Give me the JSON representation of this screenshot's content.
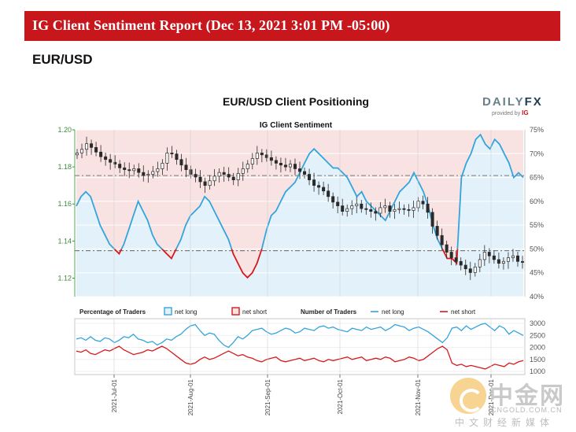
{
  "banner": {
    "title": "IG Client Sentiment Report (Dec 13, 2021 3:01 PM -05:00)"
  },
  "pair": "EUR/USD",
  "logo": {
    "main": "DAILY",
    "fx": "FX",
    "sub": "provided by",
    "ig": "IG"
  },
  "watermark": {
    "cn": "中金网",
    "en": "CNGOLD.COM.CN",
    "sub": "中文财经新媒体"
  },
  "colors": {
    "banner": "#c8161d",
    "net_long": "#33a4dc",
    "net_short": "#d7191c",
    "long_fill": "#e3f2fa",
    "short_fill": "#f9e2e2",
    "candle": "#2a2a2a"
  },
  "chart_data": [
    {
      "type": "candlestick-sentiment",
      "title": "EUR/USD Client Positioning",
      "subtitle": "IG Client Sentiment",
      "price_axis": {
        "min": 1.11,
        "max": 1.2,
        "ticks": [
          1.12,
          1.14,
          1.16,
          1.18,
          1.2
        ],
        "tick_labels": [
          "1.12",
          "1.14",
          "1.16",
          "1.18",
          "1.20"
        ]
      },
      "pct_axis": {
        "min": 40,
        "max": 75,
        "ticks": [
          40,
          45,
          50,
          55,
          60,
          65,
          70,
          75
        ],
        "tick_labels": [
          "40%",
          "45%",
          "50%",
          "55%",
          "60%",
          "65%",
          "70%",
          "75%"
        ]
      },
      "reference_levels": {
        "price": 1.1348,
        "pct_mid": 50,
        "pct_current": 65.4
      },
      "price_series": [
        1.1875,
        1.1895,
        1.1925,
        1.1905,
        1.188,
        1.1855,
        1.184,
        1.1825,
        1.1815,
        1.1795,
        1.1785,
        1.178,
        1.179,
        1.177,
        1.1755,
        1.176,
        1.1775,
        1.179,
        1.182,
        1.1875,
        1.187,
        1.184,
        1.181,
        1.1785,
        1.176,
        1.1745,
        1.172,
        1.17,
        1.1725,
        1.175,
        1.177,
        1.176,
        1.1745,
        1.173,
        1.1765,
        1.179,
        1.1815,
        1.1845,
        1.1875,
        1.1865,
        1.185,
        1.1835,
        1.182,
        1.181,
        1.18,
        1.1815,
        1.179,
        1.1775,
        1.176,
        1.173,
        1.17,
        1.169,
        1.167,
        1.164,
        1.161,
        1.159,
        1.156,
        1.1575,
        1.159,
        1.16,
        1.1575,
        1.157,
        1.156,
        1.155,
        1.158,
        1.159,
        1.156,
        1.157,
        1.1575,
        1.157,
        1.1565,
        1.158,
        1.1615,
        1.16,
        1.1555,
        1.148,
        1.143,
        1.138,
        1.134,
        1.131,
        1.129,
        1.127,
        1.125,
        1.123,
        1.126,
        1.13,
        1.134,
        1.132,
        1.13,
        1.128,
        1.129,
        1.131,
        1.132,
        1.129,
        1.1285
      ],
      "pct_long_series": [
        59,
        61,
        62,
        61,
        58,
        55,
        53,
        51,
        50,
        49,
        51,
        54,
        57,
        60,
        58,
        56,
        53,
        51,
        50,
        49,
        48,
        50,
        52,
        55,
        57,
        58,
        59,
        61,
        60,
        58,
        56,
        54,
        52,
        49,
        47,
        45,
        44,
        45,
        47,
        50,
        54,
        57,
        58,
        60,
        62,
        63,
        64,
        66,
        68,
        70,
        71,
        70,
        69,
        68,
        67,
        67,
        66,
        65,
        63,
        61,
        62,
        60,
        59,
        58,
        57,
        56,
        58,
        60,
        62,
        63,
        64,
        66,
        64,
        62,
        59,
        55,
        52,
        50,
        48,
        48,
        47,
        65,
        68,
        70,
        73,
        74,
        72,
        71,
        73,
        72,
        70,
        68,
        65,
        66,
        65
      ],
      "x_axis": {
        "tick_labels": [
          "2021-Jul-01",
          "2021-Aug-01",
          "2021-Sep-01",
          "2021-Oct-01",
          "2021-Nov-01",
          "2021-Dec-01"
        ]
      }
    },
    {
      "type": "line",
      "title": "",
      "y_axis": {
        "min": 1000,
        "max": 3000,
        "ticks": [
          1000,
          1500,
          2000,
          2500,
          3000
        ],
        "tick_labels": [
          "1000",
          "1500",
          "2000",
          "2500",
          "3000"
        ]
      },
      "legend": {
        "pct_label": "Percentage of Traders",
        "pct_long": "net long",
        "pct_short": "net short",
        "num_label": "Number of Traders",
        "num_long": "net long",
        "num_short": "net short"
      },
      "series": [
        {
          "name": "net long",
          "values": [
            2350,
            2400,
            2300,
            2450,
            2300,
            2250,
            2400,
            2350,
            2200,
            2300,
            2450,
            2400,
            2550,
            2350,
            2300,
            2200,
            2250,
            2100,
            2200,
            2350,
            2300,
            2450,
            2550,
            2750,
            2900,
            2950,
            2700,
            2500,
            2600,
            2550,
            2300,
            2100,
            2000,
            2200,
            2450,
            2350,
            2500,
            2700,
            2750,
            2800,
            2650,
            2550,
            2600,
            2700,
            2800,
            2750,
            2600,
            2650,
            2800,
            2750,
            2700,
            2850,
            2900,
            2800,
            2850,
            2750,
            2700,
            2650,
            2800,
            2750,
            2700,
            2850,
            2750,
            2800,
            2850,
            2700,
            2800,
            2950,
            2900,
            2850,
            2700,
            2800,
            2850,
            2750,
            2650,
            2500,
            2350,
            2200,
            2400,
            2800,
            2850,
            2700,
            2900,
            2750,
            2850,
            2950,
            3000,
            2850,
            2700,
            2900,
            2800,
            2550,
            2700,
            2600,
            2500
          ],
          "color": "#33a4dc"
        },
        {
          "name": "net short",
          "values": [
            1850,
            1800,
            1900,
            1750,
            1700,
            1800,
            1900,
            1850,
            1950,
            2050,
            1900,
            1800,
            1700,
            1750,
            1800,
            1900,
            1850,
            1950,
            2050,
            1950,
            1800,
            1650,
            1500,
            1350,
            1300,
            1350,
            1500,
            1600,
            1500,
            1550,
            1650,
            1750,
            1850,
            1750,
            1650,
            1700,
            1600,
            1550,
            1450,
            1400,
            1500,
            1550,
            1600,
            1450,
            1400,
            1450,
            1500,
            1550,
            1450,
            1500,
            1550,
            1450,
            1400,
            1500,
            1450,
            1500,
            1550,
            1600,
            1500,
            1550,
            1600,
            1450,
            1500,
            1550,
            1500,
            1600,
            1550,
            1400,
            1450,
            1500,
            1600,
            1550,
            1450,
            1500,
            1650,
            1800,
            1950,
            2050,
            1900,
            1350,
            1250,
            1300,
            1200,
            1250,
            1200,
            1150,
            1100,
            1200,
            1300,
            1250,
            1200,
            1350,
            1300,
            1400,
            1450
          ],
          "color": "#d7191c"
        }
      ]
    }
  ]
}
